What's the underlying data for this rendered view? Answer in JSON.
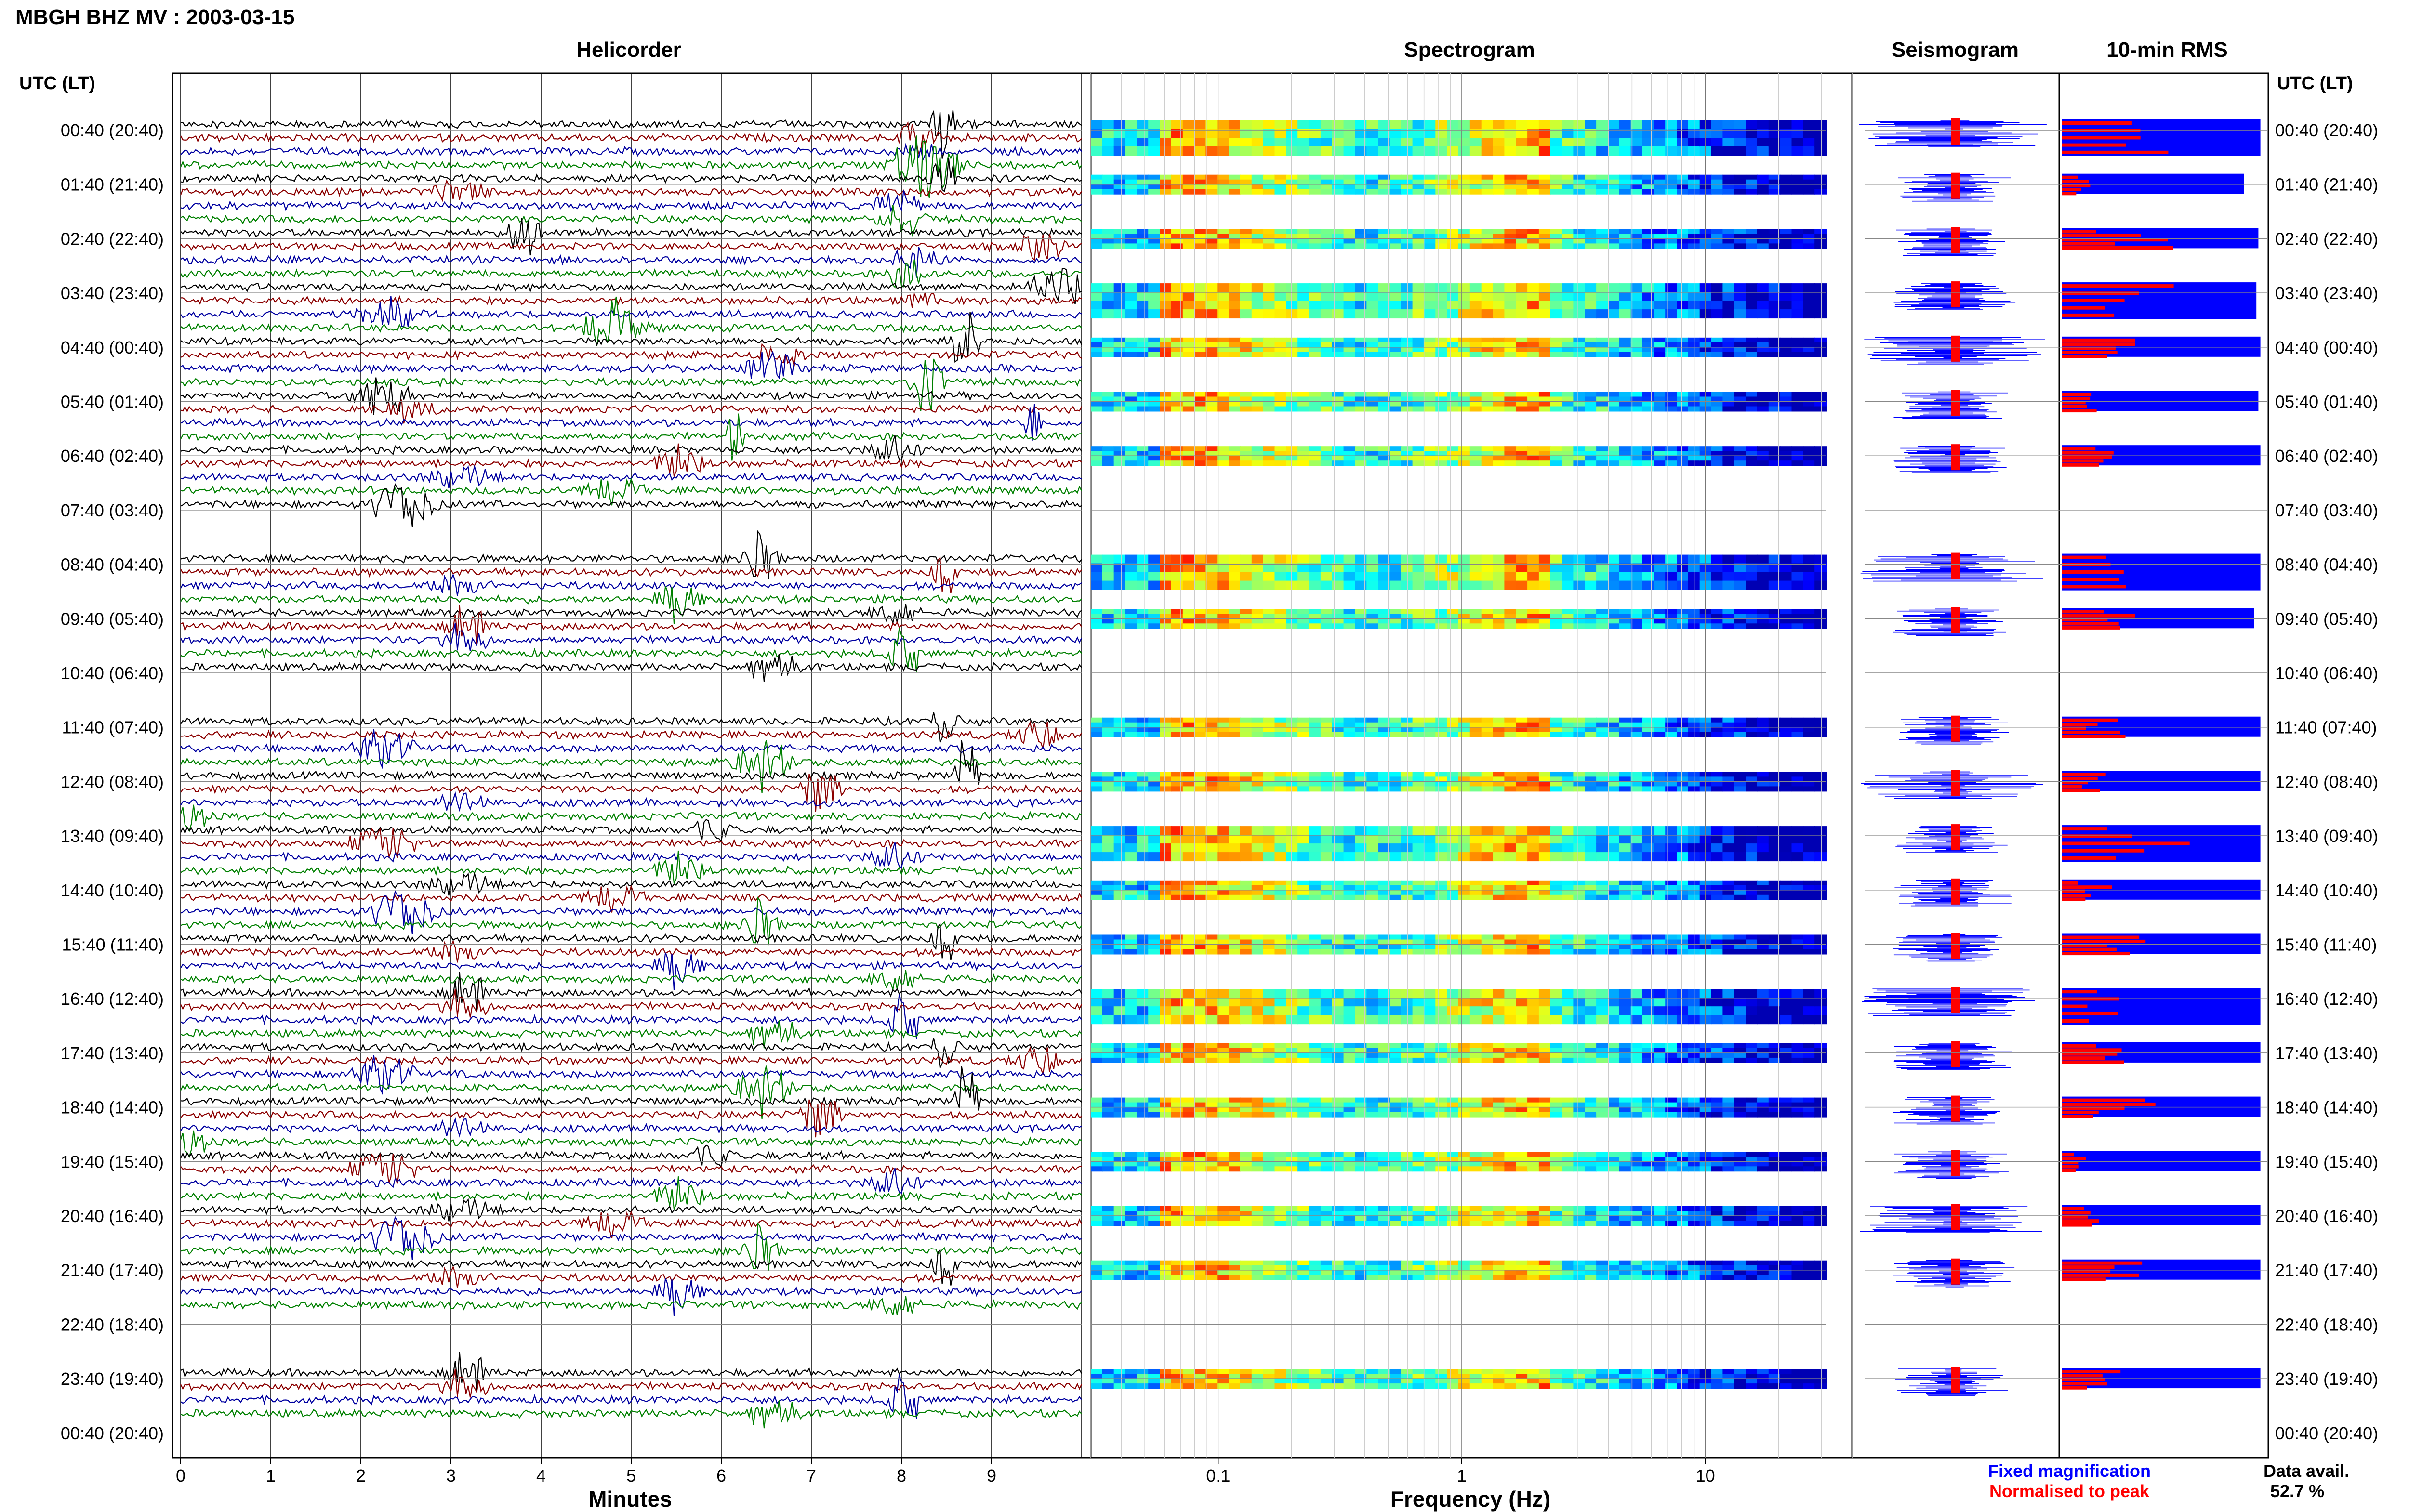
{
  "title": "MBGH BHZ MV : 2003-03-15",
  "panels": {
    "helicorder": "Helicorder",
    "spectrogram": "Spectrogram",
    "seismogram": "Seismogram",
    "rms": "10-min RMS"
  },
  "axis": {
    "time_header_left": "UTC (LT)",
    "time_header_right": "UTC (LT)",
    "helicorder_xlabel": "Minutes",
    "spectrogram_xlabel": "Frequency (Hz)"
  },
  "legend": {
    "fixed": "Fixed magnification",
    "normalised": "Normalised to peak",
    "fixed_color": "#0000ff",
    "normalised_color": "#ff0000"
  },
  "data_avail": {
    "label": "Data avail.",
    "value": "52.7 %"
  },
  "colors": {
    "trace_cycle": [
      "#000000",
      "#8b0000",
      "#0000a0",
      "#008000"
    ],
    "rms_fixed": "#0000ff",
    "rms_norm": "#ff0000"
  },
  "chart_data": {
    "type": "helicorder",
    "time_labels": [
      "00:40 (20:40)",
      "01:40 (21:40)",
      "02:40 (22:40)",
      "03:40 (23:40)",
      "04:40 (00:40)",
      "05:40 (01:40)",
      "06:40 (02:40)",
      "07:40 (03:40)",
      "08:40 (04:40)",
      "09:40 (05:40)",
      "10:40 (06:40)",
      "11:40 (07:40)",
      "12:40 (08:40)",
      "13:40 (09:40)",
      "14:40 (10:40)",
      "15:40 (11:40)",
      "16:40 (12:40)",
      "17:40 (13:40)",
      "18:40 (14:40)",
      "19:40 (15:40)",
      "20:40 (16:40)",
      "21:40 (17:40)",
      "22:40 (18:40)",
      "23:40 (19:40)",
      "00:40 (20:40)"
    ],
    "helicorder_xticks": [
      "0",
      "1",
      "2",
      "3",
      "4",
      "5",
      "6",
      "7",
      "8",
      "9"
    ],
    "helicorder_xlim": [
      0,
      10
    ],
    "spectrogram_xticks": [
      "0.1",
      "1",
      "10"
    ],
    "spectrogram_xlim": [
      0.03,
      40
    ],
    "log_frequency_axis": true,
    "hours_with_data": [
      0,
      1,
      2,
      3,
      4,
      5,
      6,
      8,
      9,
      11,
      12,
      13,
      14,
      15,
      16,
      17,
      18,
      19,
      20,
      21,
      23
    ],
    "rms_fixed": [
      0.98,
      0.9,
      0.97,
      0.96,
      0.98,
      0.97,
      0.98,
      0.0,
      0.98,
      0.95,
      0.0,
      0.98,
      0.98,
      0.98,
      0.98,
      0.98,
      0.98,
      0.98,
      0.98,
      0.98,
      0.98,
      0.98,
      0.0,
      0.98
    ],
    "rms_normalised": [
      0.6,
      0.15,
      0.55,
      0.65,
      0.38,
      0.22,
      0.28,
      0.0,
      0.32,
      0.6,
      0.0,
      0.32,
      0.28,
      0.7,
      0.25,
      0.43,
      0.4,
      0.32,
      0.48,
      0.15,
      0.3,
      0.4,
      0.0,
      0.3
    ]
  }
}
